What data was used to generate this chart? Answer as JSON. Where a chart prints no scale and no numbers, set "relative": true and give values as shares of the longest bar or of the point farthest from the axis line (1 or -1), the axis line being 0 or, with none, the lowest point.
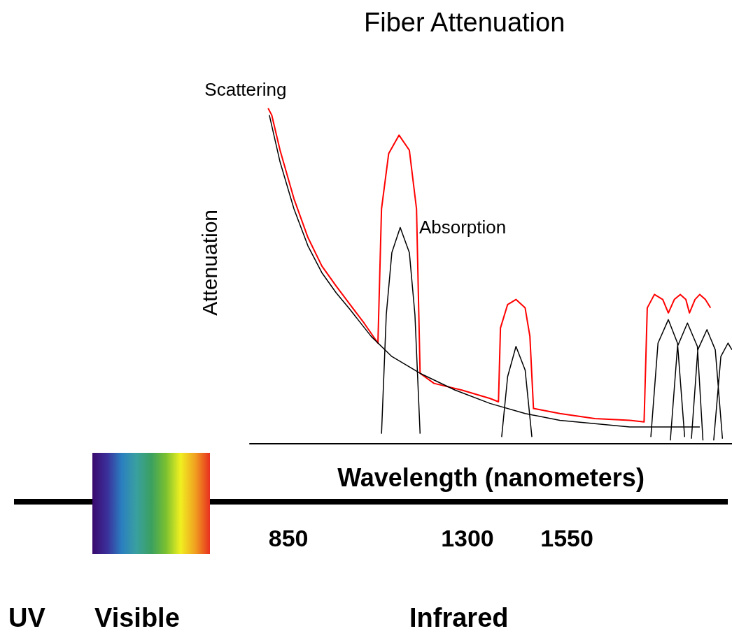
{
  "chart_data": {
    "type": "line",
    "title": "Fiber Attenuation",
    "xlabel": "Wavelength (nanometers)",
    "ylabel": "Attenuation",
    "annotations": [
      "UV",
      "Visible",
      "Infrared"
    ],
    "relative": true,
    "xlim": [
      753,
      1965
    ],
    "xticks": [
      850,
      1300,
      1550
    ],
    "tick_labels": "x",
    "legend": false,
    "grid": false,
    "marker": "none",
    "line_style": "solid",
    "series": [
      {
        "color": "#ff0000",
        "x": [
          799,
          808,
          829,
          864,
          899,
          934,
          970,
          1005,
          1040,
          1075,
          1084,
          1102,
          1128,
          1154,
          1172,
          1181,
          1216,
          1286,
          1357,
          1378,
          1383,
          1401,
          1422,
          1445,
          1457,
          1466,
          1532,
          1620,
          1708,
          1744,
          1752,
          1770,
          1791,
          1805,
          1820,
          1835,
          1849,
          1858,
          1872,
          1884,
          1898,
          1911
        ],
        "values": [
          1.0,
          0.98,
          0.875,
          0.73,
          0.615,
          0.53,
          0.47,
          0.415,
          0.36,
          0.3,
          0.7,
          0.865,
          0.92,
          0.875,
          0.7,
          0.21,
          0.18,
          0.16,
          0.135,
          0.125,
          0.345,
          0.415,
          0.43,
          0.405,
          0.32,
          0.105,
          0.09,
          0.075,
          0.07,
          0.065,
          0.405,
          0.445,
          0.43,
          0.39,
          0.43,
          0.445,
          0.43,
          0.39,
          0.43,
          0.445,
          0.43,
          0.405
        ]
      },
      {
        "name": "Scattering",
        "color": "#000000",
        "x": [
          802,
          829,
          864,
          899,
          934,
          970,
          1005,
          1058,
          1110,
          1181,
          1269,
          1357,
          1445,
          1532,
          1620,
          1708,
          1796,
          1884
        ],
        "values": [
          0.98,
          0.84,
          0.7,
          0.59,
          0.51,
          0.45,
          0.4,
          0.32,
          0.26,
          0.21,
          0.16,
          0.12,
          0.09,
          0.07,
          0.06,
          0.05,
          0.05,
          0.05
        ]
      },
      {
        "name": "Absorption",
        "color": "#000000",
        "x": [
          1084,
          1096,
          1110,
          1131,
          1154,
          1168,
          1181,
          null,
          1386,
          1401,
          1422,
          1445,
          1462,
          null,
          1761,
          1779,
          1805,
          1828,
          1846,
          null,
          1810,
          1828,
          1853,
          1878,
          1892,
          null,
          1863,
          1879,
          1902,
          1923,
          1941,
          null,
          1919,
          1937,
          1955,
          1965
        ],
        "values": [
          0.03,
          0.385,
          0.57,
          0.645,
          0.57,
          0.385,
          0.03,
          null,
          0.02,
          0.2,
          0.29,
          0.22,
          0.02,
          null,
          0.02,
          0.3,
          0.37,
          0.3,
          0.02,
          null,
          0.01,
          0.29,
          0.36,
          0.29,
          0.01,
          null,
          0.015,
          0.28,
          0.34,
          0.28,
          0.015,
          null,
          0.01,
          0.26,
          0.3,
          0.28
        ]
      }
    ]
  }
}
